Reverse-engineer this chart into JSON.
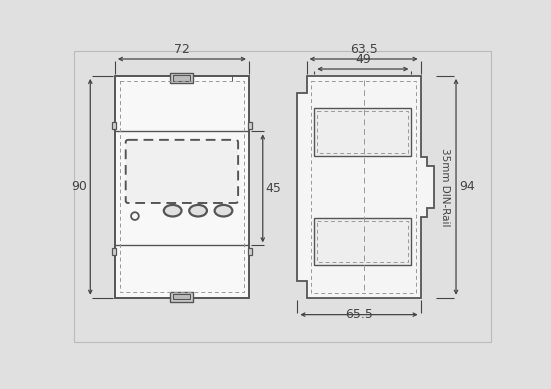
{
  "bg_color": "#e0e0e0",
  "line_color": "#555555",
  "dashed_color": "#999999",
  "dim_color": "#444444",
  "fig_width": 5.51,
  "fig_height": 3.89,
  "dims": {
    "front_width": "72",
    "front_height": "90",
    "mid_section": "45",
    "side_outer_top": "63.5",
    "side_inner_top": "49",
    "side_bottom": "65.5",
    "side_depth": "94",
    "din_rail": "35mm DIN-Rail"
  }
}
